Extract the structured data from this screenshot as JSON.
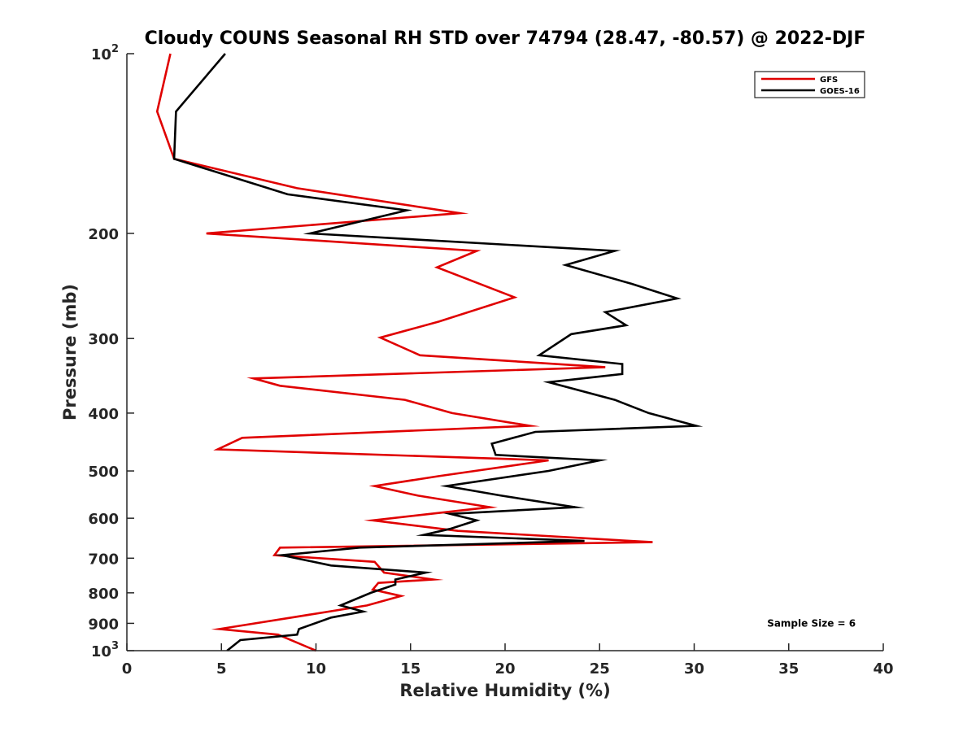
{
  "chart_data": {
    "type": "line",
    "title": "Cloudy COUNS Seasonal RH STD over 74794 (28.47, -80.57) @ 2022-DJF",
    "xlabel": "Relative Humidity (%)",
    "ylabel": "Pressure (mb)",
    "xlim": [
      0,
      40
    ],
    "ylim": [
      100,
      1000
    ],
    "yscale": "log",
    "y_reversed": true,
    "grid": false,
    "xticks": [
      0,
      5,
      10,
      15,
      20,
      25,
      30,
      35,
      40
    ],
    "xtick_labels": [
      "0",
      "5",
      "10",
      "15",
      "20",
      "25",
      "30",
      "35",
      "40"
    ],
    "yticks": [
      100,
      200,
      300,
      400,
      500,
      600,
      700,
      800,
      900,
      1000
    ],
    "ytick_labels": [
      {
        "base": "10",
        "exp": "2"
      },
      {
        "base": "200"
      },
      {
        "base": "300"
      },
      {
        "base": "400"
      },
      {
        "base": "500"
      },
      {
        "base": "600"
      },
      {
        "base": "700"
      },
      {
        "base": "800"
      },
      {
        "base": "900"
      },
      {
        "base": "10",
        "exp": "3"
      }
    ],
    "legend_position": "top-right",
    "series": [
      {
        "name": "GFS",
        "color": "#e00000",
        "points": [
          [
            2.3,
            100
          ],
          [
            1.6,
            125
          ],
          [
            2.5,
            150
          ],
          [
            9.0,
            168
          ],
          [
            17.6,
            185
          ],
          [
            4.2,
            200
          ],
          [
            18.5,
            214
          ],
          [
            16.4,
            228
          ],
          [
            20.5,
            256
          ],
          [
            16.5,
            281
          ],
          [
            13.4,
            299
          ],
          [
            15.5,
            320
          ],
          [
            25.3,
            335
          ],
          [
            6.7,
            350
          ],
          [
            8.1,
            360
          ],
          [
            14.7,
            380
          ],
          [
            17.2,
            400
          ],
          [
            21.3,
            420
          ],
          [
            6.1,
            440
          ],
          [
            4.8,
            460
          ],
          [
            22.3,
            480
          ],
          [
            16.5,
            510
          ],
          [
            13.1,
            530
          ],
          [
            15.4,
            550
          ],
          [
            19.2,
            575
          ],
          [
            13.0,
            605
          ],
          [
            17.5,
            630
          ],
          [
            27.8,
            658
          ],
          [
            8.1,
            672
          ],
          [
            7.8,
            692
          ],
          [
            13.1,
            710
          ],
          [
            13.6,
            740
          ],
          [
            16.2,
            760
          ],
          [
            13.3,
            770
          ],
          [
            13.0,
            790
          ],
          [
            14.5,
            810
          ],
          [
            12.7,
            840
          ],
          [
            8.7,
            880
          ],
          [
            4.9,
            920
          ],
          [
            8.0,
            940
          ],
          [
            10.0,
            1000
          ]
        ]
      },
      {
        "name": "GOES-16",
        "color": "#000000",
        "points": [
          [
            5.2,
            100
          ],
          [
            2.6,
            125
          ],
          [
            2.5,
            150
          ],
          [
            8.5,
            172
          ],
          [
            14.8,
            183
          ],
          [
            9.7,
            200
          ],
          [
            25.8,
            214
          ],
          [
            23.2,
            226
          ],
          [
            26.7,
            243
          ],
          [
            29.1,
            257
          ],
          [
            25.3,
            271
          ],
          [
            26.4,
            285
          ],
          [
            23.5,
            295
          ],
          [
            21.8,
            320
          ],
          [
            26.2,
            331
          ],
          [
            26.2,
            344
          ],
          [
            22.3,
            355
          ],
          [
            25.8,
            380
          ],
          [
            27.6,
            400
          ],
          [
            30.1,
            420
          ],
          [
            21.6,
            430
          ],
          [
            19.3,
            450
          ],
          [
            19.5,
            470
          ],
          [
            25.0,
            480
          ],
          [
            22.3,
            500
          ],
          [
            16.9,
            530
          ],
          [
            19.8,
            550
          ],
          [
            23.7,
            575
          ],
          [
            17.1,
            590
          ],
          [
            18.5,
            605
          ],
          [
            17.1,
            625
          ],
          [
            15.7,
            640
          ],
          [
            24.2,
            655
          ],
          [
            12.3,
            672
          ],
          [
            8.2,
            692
          ],
          [
            10.8,
            720
          ],
          [
            15.8,
            740
          ],
          [
            14.2,
            760
          ],
          [
            14.2,
            775
          ],
          [
            12.9,
            800
          ],
          [
            11.3,
            840
          ],
          [
            12.5,
            860
          ],
          [
            10.8,
            880
          ],
          [
            9.1,
            920
          ],
          [
            9.0,
            940
          ],
          [
            6.0,
            960
          ],
          [
            5.3,
            1000
          ]
        ]
      }
    ],
    "annotations": [
      {
        "text": "Sample Size = 6",
        "x": 36.2,
        "y": 900
      }
    ]
  }
}
